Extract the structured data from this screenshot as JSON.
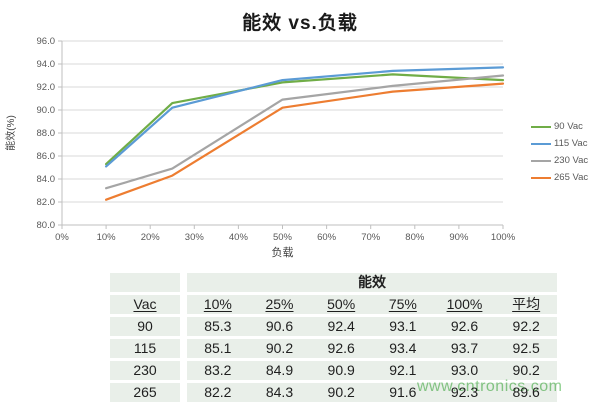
{
  "title": "能效 vs.负载",
  "watermark": "www.cntronics.com",
  "colors": {
    "series_green": "#70AD47",
    "series_blue": "#5B9BD5",
    "series_gray": "#A5A5A5",
    "series_orange": "#ED7D31",
    "gridline": "#D9D9D9",
    "axis_line": "#BFBFBF",
    "tick_text": "#595959",
    "axis_title_text": "#404040",
    "table_band": "#E9EFE9",
    "watermark_green": "#8FD08F"
  },
  "chart_data": {
    "type": "line",
    "title": "能效 vs.负载",
    "xlabel": "负载",
    "ylabel": "能效(%)",
    "x": [
      10,
      25,
      50,
      75,
      100
    ],
    "series": [
      {
        "name": "90 Vac",
        "color": "#70AD47",
        "values": [
          85.3,
          90.6,
          92.4,
          93.1,
          92.6
        ]
      },
      {
        "name": "115 Vac",
        "color": "#5B9BD5",
        "values": [
          85.1,
          90.2,
          92.6,
          93.4,
          93.7
        ]
      },
      {
        "name": "230 Vac",
        "color": "#A5A5A5",
        "values": [
          83.2,
          84.9,
          90.9,
          92.1,
          93.0
        ]
      },
      {
        "name": "265 Vac",
        "color": "#ED7D31",
        "values": [
          82.2,
          84.3,
          90.2,
          91.6,
          92.3
        ]
      }
    ],
    "xlim": [
      0,
      100
    ],
    "ylim": [
      80,
      96
    ],
    "xticks": [
      0,
      10,
      20,
      30,
      40,
      50,
      60,
      70,
      80,
      90,
      100
    ],
    "xticklabels": [
      "0%",
      "10%",
      "20%",
      "30%",
      "40%",
      "50%",
      "60%",
      "70%",
      "80%",
      "90%",
      "100%"
    ],
    "yticks": [
      80,
      82,
      84,
      86,
      88,
      90,
      92,
      94,
      96
    ],
    "yticklabels": [
      "80.0",
      "82.0",
      "84.0",
      "86.0",
      "88.0",
      "90.0",
      "92.0",
      "94.0",
      "96.0"
    ],
    "grid": true,
    "legend_position": "right"
  },
  "table": {
    "title": "能效",
    "columns": [
      "Vac",
      "10%",
      "25%",
      "50%",
      "75%",
      "100%",
      "平均"
    ],
    "rows": [
      [
        "90",
        "85.3",
        "90.6",
        "92.4",
        "93.1",
        "92.6",
        "92.2"
      ],
      [
        "115",
        "85.1",
        "90.2",
        "92.6",
        "93.4",
        "93.7",
        "92.5"
      ],
      [
        "230",
        "83.2",
        "84.9",
        "90.9",
        "92.1",
        "93.0",
        "90.2"
      ],
      [
        "265",
        "82.2",
        "84.3",
        "90.2",
        "91.6",
        "92.3",
        "89.6"
      ]
    ]
  }
}
